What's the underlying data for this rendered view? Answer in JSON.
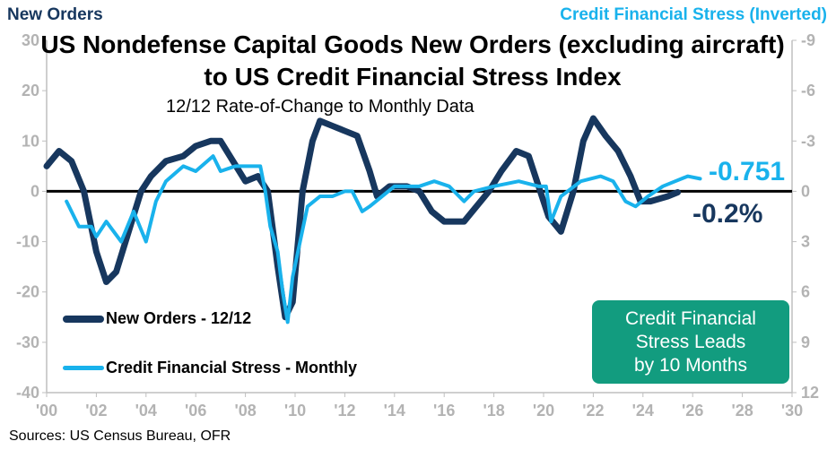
{
  "chart_data": {
    "type": "line",
    "title": "US Nondefense Capital Goods New Orders (excluding aircraft) to US Credit Financial Stress Index",
    "subtitle": "12/12 Rate-of-Change to Monthly Data",
    "left_axis_label": "New Orders",
    "right_axis_label": "Credit Financial Stress (Inverted)",
    "x_ticks": [
      "'00",
      "'02",
      "'04",
      "'06",
      "'08",
      "'10",
      "'12",
      "'14",
      "'16",
      "'18",
      "'20",
      "'22",
      "'24",
      "'26",
      "'28",
      "'30"
    ],
    "xlim": [
      2000,
      2030
    ],
    "y_left_ticks": [
      "30",
      "20",
      "10",
      "0",
      "-10",
      "-20",
      "-30",
      "-40"
    ],
    "ylim_left": [
      -40,
      30
    ],
    "y_right_ticks": [
      "-9",
      "-6",
      "-3",
      "0",
      "3",
      "6",
      "9",
      "12"
    ],
    "ylim_right_inverted": [
      12,
      -9
    ],
    "series": [
      {
        "name": "New Orders - 12/12",
        "axis": "left",
        "color": "#17375e",
        "x": [
          2000,
          2000.5,
          2001,
          2001.5,
          2002,
          2002.4,
          2002.8,
          2003.3,
          2003.8,
          2004.2,
          2004.8,
          2005.5,
          2006,
          2006.6,
          2007,
          2007.5,
          2008,
          2008.5,
          2008.9,
          2009.3,
          2009.6,
          2009.9,
          2010.3,
          2010.7,
          2011,
          2011.5,
          2012,
          2012.5,
          2013,
          2013.3,
          2013.8,
          2014.5,
          2015,
          2015.5,
          2016,
          2016.8,
          2017.3,
          2017.8,
          2018.3,
          2018.9,
          2019.4,
          2019.8,
          2020.2,
          2020.7,
          2021.2,
          2021.6,
          2022,
          2022.5,
          2023,
          2023.5,
          2023.9,
          2024.3,
          2025,
          2025.4
        ],
        "y": [
          5,
          8,
          6,
          0,
          -12,
          -18,
          -16,
          -8,
          0,
          3,
          6,
          7,
          9,
          10,
          10,
          6,
          2,
          3,
          0,
          -15,
          -25,
          -22,
          0,
          10,
          14,
          13,
          12,
          11,
          4,
          -1,
          1,
          1,
          0,
          -4,
          -6,
          -6,
          -3,
          0,
          4,
          8,
          7,
          1,
          -5,
          -8,
          0,
          10,
          14.5,
          11,
          8,
          3,
          -2,
          -2,
          -1,
          -0.2
        ]
      },
      {
        "name": "Credit Financial Stress - Monthly",
        "axis": "right",
        "color": "#19b2ec",
        "x": [
          2000.8,
          2001.3,
          2001.8,
          2002,
          2002.4,
          2003,
          2003.5,
          2004,
          2004.4,
          2004.8,
          2005.5,
          2006,
          2006.7,
          2007,
          2007.6,
          2008.3,
          2008.6,
          2008.8,
          2009,
          2009.3,
          2009.5,
          2009.7,
          2009.9,
          2010.2,
          2010.5,
          2011,
          2011.5,
          2012,
          2012.3,
          2012.7,
          2013,
          2013.5,
          2014,
          2015,
          2015.6,
          2016.2,
          2016.8,
          2017.2,
          2018,
          2019,
          2019.8,
          2020.1,
          2020.3,
          2020.7,
          2021.5,
          2022.3,
          2022.8,
          2023.3,
          2023.7,
          2024.2,
          2024.8,
          2025.3,
          2025.8,
          2026.3
        ],
        "y": [
          0.6,
          2.1,
          2.1,
          2.7,
          1.8,
          3,
          1.2,
          3,
          0.6,
          -0.6,
          -1.5,
          -1.2,
          -2.1,
          -1.2,
          -1.5,
          -1.5,
          -1.5,
          0,
          2.1,
          3.6,
          6,
          7.8,
          5.1,
          3,
          0.9,
          0.3,
          0.3,
          0,
          0,
          1.2,
          0.9,
          0.3,
          -0.3,
          -0.3,
          -0.6,
          -0.3,
          0.6,
          0,
          -0.3,
          -0.6,
          -0.3,
          -0.3,
          1.8,
          0.3,
          -0.6,
          -0.9,
          -0.6,
          0.6,
          0.9,
          0.3,
          -0.3,
          -0.6,
          -0.9,
          -0.751
        ]
      }
    ],
    "annotations": {
      "credit_last": "-0.751",
      "orders_last": "-0.2%",
      "note": [
        "Credit Financial",
        "Stress Leads",
        "by 10 Months"
      ]
    },
    "source": "Sources: US Census Bureau, OFR"
  }
}
